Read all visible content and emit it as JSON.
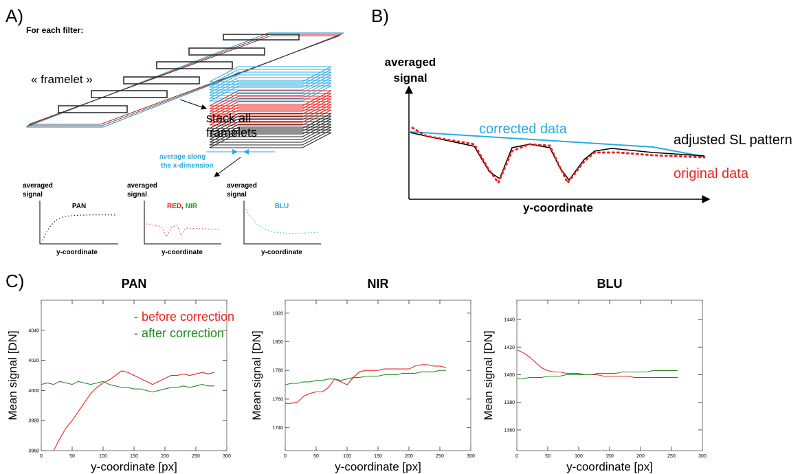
{
  "panel_a": {
    "label": "A)",
    "heading": "For each filter:",
    "framelet": "« framelet »",
    "stack": [
      "stack all",
      "framelets"
    ],
    "average": [
      "average along",
      "the x-dimension"
    ],
    "plots": [
      {
        "ylabel": [
          "averaged",
          "signal"
        ],
        "title": [
          "PAN"
        ],
        "xlabel": "y-coordinate"
      },
      {
        "ylabel": [
          "averaged",
          "signal"
        ],
        "title": [
          "RED",
          ",",
          "NIR"
        ],
        "xlabel": "y-coordinate"
      },
      {
        "ylabel": [
          "averaged",
          "signal"
        ],
        "title": [
          "BLU"
        ],
        "xlabel": "y-coordinate"
      }
    ]
  },
  "panel_b": {
    "label": "B)",
    "ylabel": [
      "averaged",
      "signal"
    ],
    "xlabel": "y-coordinate",
    "corrected": "corrected data",
    "adjusted": "adjusted SL pattern",
    "original": "original data"
  },
  "panel_c": {
    "label": "C)"
  },
  "chart_data": [
    {
      "type": "line",
      "title": "PAN",
      "ylabel": "Mean signal [DN]",
      "xlabel": "y-coordinate [px]",
      "xlim": [
        0,
        300
      ],
      "xticks": [
        0,
        50,
        100,
        150,
        200,
        250,
        300
      ],
      "ylim": [
        3960,
        4060
      ],
      "yticks": [
        3960,
        3980,
        4000,
        4020,
        4040
      ],
      "legend": "upper right",
      "x": [
        0,
        10,
        20,
        30,
        40,
        50,
        60,
        70,
        80,
        90,
        100,
        110,
        120,
        130,
        140,
        150,
        160,
        170,
        180,
        190,
        200,
        210,
        220,
        230,
        240,
        250,
        260,
        270,
        280
      ],
      "series": [
        {
          "name": "- before correction",
          "color": "#e8231e",
          "values": [
            null,
            null,
            3960,
            3968,
            3975,
            3980,
            3986,
            3992,
            3998,
            4002,
            4005,
            4007,
            4010,
            4013,
            4012,
            4010,
            4008,
            4006,
            4004,
            4006,
            4008,
            4010,
            4010,
            4011,
            4010,
            4011,
            4012,
            4011,
            4012
          ]
        },
        {
          "name": "- after correction",
          "color": "#1f8a1f",
          "values": [
            4004,
            4005,
            4004,
            4006,
            4005,
            4004,
            4006,
            4005,
            4004,
            4005,
            4006,
            4004,
            4003,
            4002,
            4002,
            4001,
            4001,
            4000,
            3999,
            4000,
            4001,
            4002,
            4002,
            4003,
            4002,
            4003,
            4004,
            4003,
            4003
          ]
        }
      ]
    },
    {
      "type": "line",
      "title": "NIR",
      "ylabel": "Mean signal [DN]",
      "xlabel": "y-coordinate [px]",
      "xlim": [
        0,
        300
      ],
      "xticks": [
        0,
        50,
        100,
        150,
        200,
        250,
        300
      ],
      "ylim": [
        1724,
        1829
      ],
      "yticks": [
        1740,
        1760,
        1780,
        1800,
        1820
      ],
      "x": [
        0,
        10,
        20,
        30,
        40,
        50,
        60,
        70,
        80,
        90,
        100,
        110,
        120,
        130,
        140,
        150,
        160,
        170,
        180,
        190,
        200,
        210,
        220,
        230,
        240,
        250,
        260
      ],
      "series": [
        {
          "color": "#e8231e",
          "values": [
            1757,
            1757,
            1758,
            1762,
            1764,
            1765,
            1765,
            1768,
            1774,
            1772,
            1770,
            1775,
            1779,
            1780,
            1780,
            1780,
            1781,
            1781,
            1781,
            1781,
            1781,
            1783,
            1784,
            1784,
            1783,
            1783,
            1782
          ]
        },
        {
          "color": "#1f8a1f",
          "values": [
            1770,
            1771,
            1771,
            1772,
            1772,
            1773,
            1773,
            1774,
            1774,
            1773,
            1774,
            1775,
            1775,
            1776,
            1776,
            1776,
            1777,
            1777,
            1777,
            1778,
            1778,
            1778,
            1779,
            1779,
            1779,
            1780,
            1780
          ]
        }
      ]
    },
    {
      "type": "line",
      "title": "BLU",
      "ylabel": "Mean signal [DN]",
      "xlabel": "y-coordinate [px]",
      "xlim": [
        0,
        300
      ],
      "xticks": [
        0,
        50,
        100,
        150,
        200,
        250,
        300
      ],
      "ylim": [
        1345,
        1454
      ],
      "yticks": [
        1360,
        1380,
        1400,
        1420,
        1440
      ],
      "x": [
        0,
        10,
        20,
        30,
        40,
        50,
        60,
        70,
        80,
        90,
        100,
        110,
        120,
        130,
        140,
        150,
        160,
        170,
        180,
        190,
        200,
        210,
        220,
        230,
        240,
        250,
        260
      ],
      "series": [
        {
          "color": "#e8231e",
          "values": [
            1418,
            1416,
            1413,
            1409,
            1405,
            1403,
            1402,
            1402,
            1401,
            1401,
            1401,
            1400,
            1400,
            1400,
            1399,
            1399,
            1399,
            1399,
            1399,
            1398,
            1398,
            1398,
            1398,
            1398,
            1398,
            1398,
            1398
          ]
        },
        {
          "color": "#1f8a1f",
          "values": [
            1397,
            1397,
            1398,
            1398,
            1398,
            1399,
            1399,
            1399,
            1400,
            1400,
            1400,
            1400,
            1400,
            1401,
            1401,
            1401,
            1401,
            1402,
            1402,
            1402,
            1402,
            1402,
            1403,
            1403,
            1403,
            1403,
            1403
          ]
        }
      ]
    }
  ]
}
